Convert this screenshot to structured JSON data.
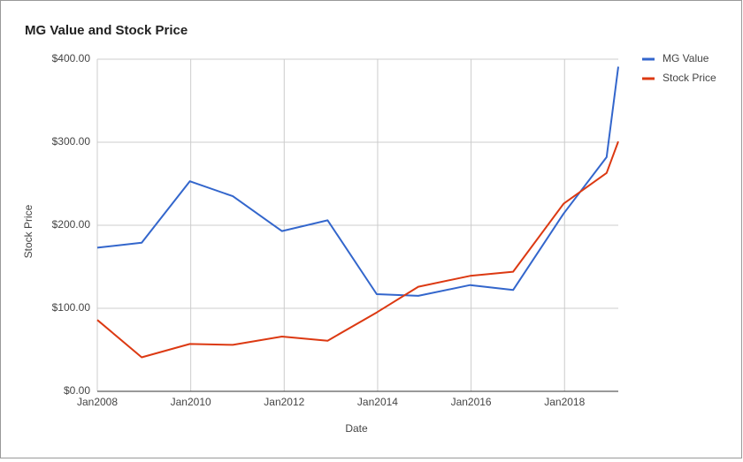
{
  "chart_data": {
    "type": "line",
    "title": "MG Value and Stock Price",
    "x_label": "Date",
    "y_label": "Stock Price",
    "x": [
      2008.0,
      2008.95,
      2009.98,
      2010.9,
      2011.95,
      2012.93,
      2013.98,
      2014.87,
      2015.98,
      2016.9,
      2017.98,
      2018.9,
      2019.15
    ],
    "series": [
      {
        "name": "MG Value",
        "color": "#3366cc",
        "values": [
          173,
          179,
          253,
          235,
          193,
          206,
          117,
          115,
          128,
          122,
          214,
          282,
          391
        ]
      },
      {
        "name": "Stock Price",
        "color": "#dc3912",
        "values": [
          86,
          41,
          57,
          56,
          66,
          61,
          95,
          126,
          139,
          144,
          226,
          263,
          301
        ]
      }
    ],
    "xlim": [
      2008,
      2019.15
    ],
    "xticks": [
      {
        "value": 2008,
        "label": "Jan2008"
      },
      {
        "value": 2010,
        "label": "Jan2010"
      },
      {
        "value": 2012,
        "label": "Jan2012"
      },
      {
        "value": 2014,
        "label": "Jan2014"
      },
      {
        "value": 2016,
        "label": "Jan2016"
      },
      {
        "value": 2018,
        "label": "Jan2018"
      }
    ],
    "ylim": [
      0,
      400
    ],
    "yticks": [
      {
        "value": 0,
        "label": "$0.00"
      },
      {
        "value": 100,
        "label": "$100.00"
      },
      {
        "value": 200,
        "label": "$200.00"
      },
      {
        "value": 300,
        "label": "$300.00"
      },
      {
        "value": 400,
        "label": "$400.00"
      }
    ],
    "grid": true,
    "legend": "right"
  }
}
